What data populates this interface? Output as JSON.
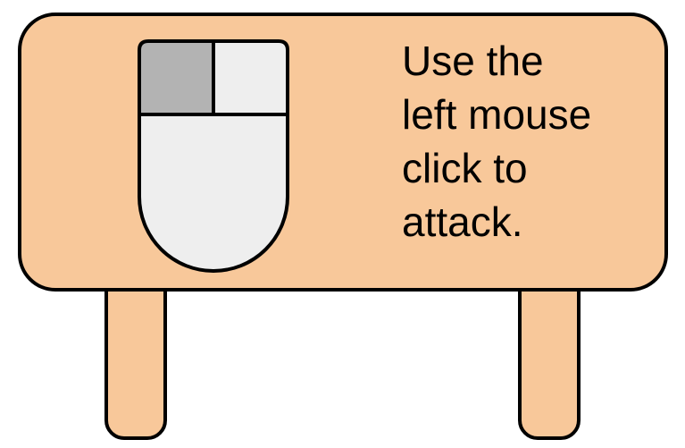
{
  "sign": {
    "text_lines": [
      "Use the",
      "left mouse",
      "click to",
      "attack."
    ],
    "icon": "mouse-icon",
    "highlighted_button": "left",
    "colors": {
      "board": "#f8c89a",
      "outline": "#000000",
      "mouse_body": "#eeeeee",
      "mouse_left_button": "#b3b3b3"
    }
  }
}
